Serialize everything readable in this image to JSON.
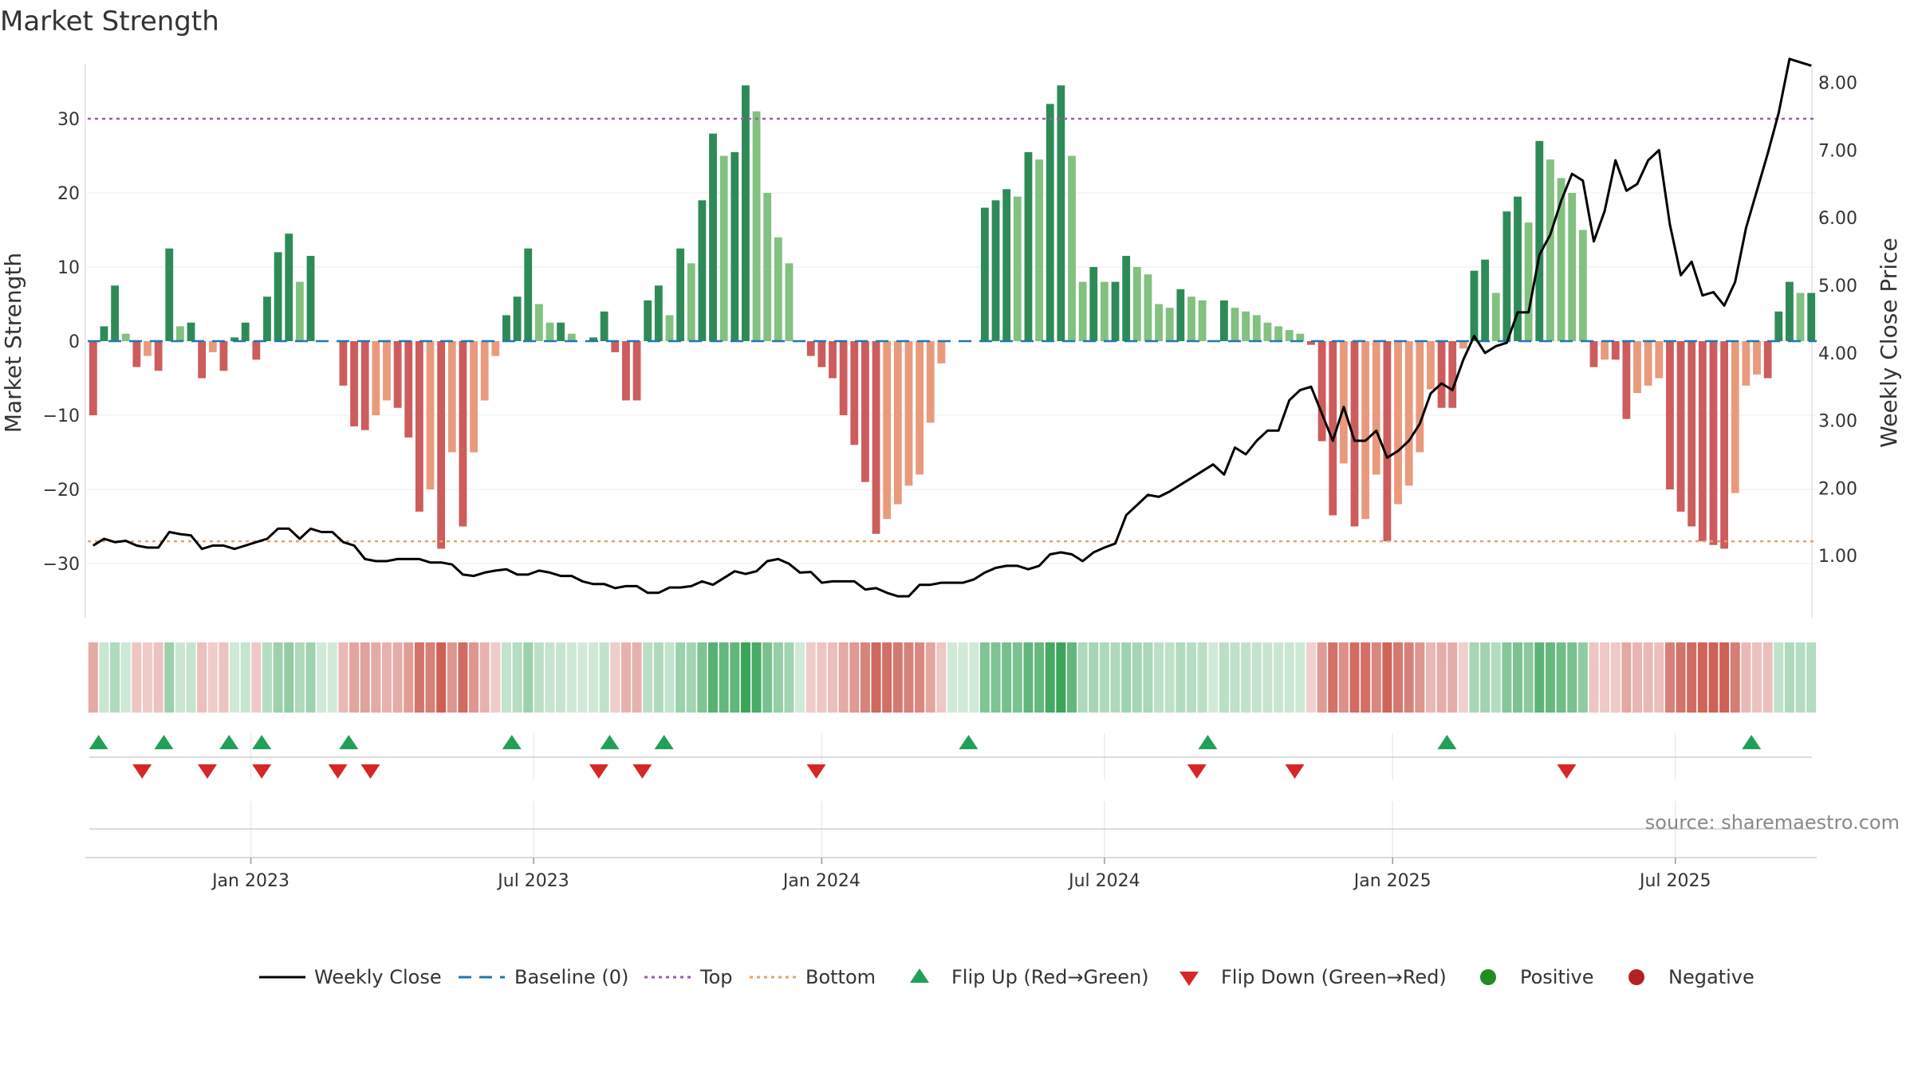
{
  "chart_data": {
    "type": "bar",
    "title": "Market Strength",
    "y_left_label": "Market Strength",
    "y_right_label": "Weekly Close Price",
    "y_left_range": [
      -37,
      37
    ],
    "y_right_range": [
      0,
      8.2
    ],
    "y_left_ticks": [
      "30",
      "20",
      "10",
      "0",
      "−10",
      "−20",
      "−30"
    ],
    "y_left_tick_values": [
      30,
      20,
      10,
      0,
      -10,
      -20,
      -30
    ],
    "y_right_ticks": [
      "8.00",
      "7.00",
      "6.00",
      "5.00",
      "4.00",
      "3.00",
      "2.00",
      "1.00"
    ],
    "y_right_tick_values": [
      8,
      7,
      6,
      5,
      4,
      3,
      2,
      1
    ],
    "x_tick_labels": [
      "Jan 2023",
      "Jul 2023",
      "Jan 2024",
      "Jul 2024",
      "Jan 2025",
      "Jul 2025"
    ],
    "x_tick_weeks": [
      15,
      41,
      67.5,
      93.5,
      120,
      146
    ],
    "top_level": 30,
    "bottom_level": -27,
    "baseline": 0,
    "grid": true,
    "legend_position": "bottom",
    "colors": {
      "pos_strong": "#2e8b57",
      "pos_weak": "#82c17f",
      "neg_strong": "#cd5c5c",
      "neg_weak": "#e99a7d",
      "top_line": "#9b59b6",
      "bottom_line": "#e8a06a",
      "baseline": "#1f77b4",
      "close_line": "#000000",
      "flip_up": "#21a05a",
      "flip_down": "#d62728",
      "positive_dot": "#228b22",
      "negative_dot": "#b22222"
    },
    "strength": [
      -10,
      2,
      7.5,
      1,
      -3.5,
      -2,
      -4,
      12.5,
      2,
      2.5,
      -5,
      -1.5,
      -4,
      0.5,
      2.5,
      -2.5,
      6,
      12,
      14.5,
      8,
      11.5,
      0,
      0,
      -6,
      -11.5,
      -12,
      -10,
      -8,
      -9,
      -13,
      -23,
      -20,
      -28,
      -15,
      -25,
      -15,
      -8,
      -2,
      3.5,
      6,
      12.5,
      5,
      2.5,
      2.5,
      1,
      0,
      0.5,
      4,
      -1.5,
      -8,
      -8,
      5.5,
      7.5,
      3.5,
      12.5,
      10.5,
      19,
      28,
      25,
      25.5,
      34.5,
      31,
      20,
      14,
      10.5,
      0,
      -2,
      -3.5,
      -5,
      -10,
      -14,
      -19,
      -26,
      -24,
      -22,
      -19.5,
      -18,
      -11,
      -3,
      0,
      0,
      0,
      18,
      19,
      20.5,
      19.5,
      25.5,
      24.5,
      32,
      34.5,
      25,
      8,
      10,
      8,
      8,
      11.5,
      10,
      9,
      5,
      4.5,
      7,
      6,
      5.5,
      0,
      5.5,
      4.5,
      4,
      3.5,
      2.5,
      2,
      1.5,
      1,
      -0.5,
      -13.5,
      -23.5,
      -16.5,
      -25,
      -24,
      -18,
      -27,
      -22,
      -19.5,
      -15,
      -6.5,
      -9,
      -9,
      -1,
      9.5,
      11,
      6.5,
      17.5,
      19.5,
      16,
      27,
      24.5,
      22,
      20,
      15,
      -3.5,
      -2.5,
      -2.5,
      -10.5,
      -7,
      -6,
      -5,
      -20,
      -23,
      -25,
      -27,
      -27.5,
      -28,
      -20.5,
      -6,
      -4.5,
      -5,
      4,
      8,
      6.5,
      6.5
    ],
    "weekly_close": [
      1.15,
      1.25,
      1.2,
      1.22,
      1.15,
      1.12,
      1.12,
      1.35,
      1.32,
      1.3,
      1.1,
      1.15,
      1.15,
      1.1,
      1.15,
      1.2,
      1.25,
      1.4,
      1.4,
      1.25,
      1.4,
      1.35,
      1.35,
      1.2,
      1.15,
      0.95,
      0.92,
      0.92,
      0.95,
      0.95,
      0.95,
      0.9,
      0.9,
      0.87,
      0.72,
      0.7,
      0.75,
      0.78,
      0.8,
      0.72,
      0.72,
      0.78,
      0.75,
      0.7,
      0.7,
      0.62,
      0.58,
      0.58,
      0.52,
      0.55,
      0.55,
      0.45,
      0.45,
      0.53,
      0.53,
      0.55,
      0.62,
      0.57,
      0.67,
      0.77,
      0.73,
      0.77,
      0.92,
      0.95,
      0.88,
      0.75,
      0.76,
      0.6,
      0.62,
      0.62,
      0.62,
      0.5,
      0.52,
      0.45,
      0.4,
      0.4,
      0.57,
      0.57,
      0.6,
      0.6,
      0.6,
      0.65,
      0.75,
      0.82,
      0.85,
      0.85,
      0.8,
      0.85,
      1.02,
      1.05,
      1.02,
      0.92,
      1.05,
      1.12,
      1.18,
      1.6,
      1.75,
      1.9,
      1.87,
      1.95,
      2.05,
      2.15,
      2.25,
      2.35,
      2.2,
      2.6,
      2.5,
      2.7,
      2.85,
      2.85,
      3.3,
      3.45,
      3.5,
      3.1,
      2.7,
      3.2,
      2.7,
      2.7,
      2.85,
      2.45,
      2.55,
      2.7,
      2.95,
      3.4,
      3.55,
      3.45,
      3.9,
      4.25,
      4.0,
      4.1,
      4.15,
      4.6,
      4.6,
      5.45,
      5.75,
      6.25,
      6.65,
      6.55,
      5.65,
      6.1,
      6.85,
      6.4,
      6.5,
      6.85,
      7.0,
      5.9,
      5.15,
      5.35,
      4.85,
      4.9,
      4.7,
      5.05,
      5.85,
      6.4,
      6.95,
      7.55,
      8.35,
      8.3,
      8.25
    ],
    "flip_up_weeks": [
      1,
      7,
      13,
      16,
      24,
      39,
      48,
      53,
      81,
      103,
      125,
      153
    ],
    "flip_down_weeks": [
      5,
      11,
      16,
      23,
      26,
      47,
      51,
      67,
      102,
      111,
      136
    ]
  },
  "legend": {
    "weekly_close": "Weekly Close",
    "baseline": "Baseline (0)",
    "top": "Top",
    "bottom": "Bottom",
    "flip_up": "Flip Up (Red→Green)",
    "flip_down": "Flip Down (Green→Red)",
    "positive": "Positive",
    "negative": "Negative"
  },
  "source": "source: sharemaestro.com"
}
